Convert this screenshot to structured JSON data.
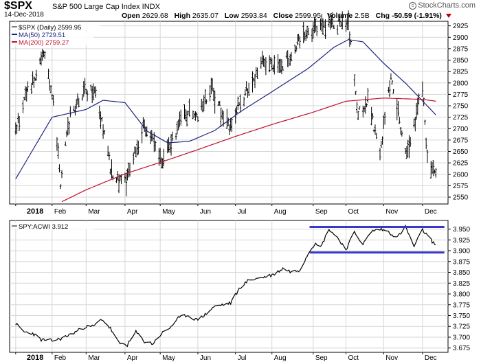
{
  "header": {
    "symbol": "$SPX",
    "description": "S&P 500 Large Cap Index INDX",
    "date": "14-Dec-2018",
    "open_label": "Open",
    "open": "2629.68",
    "high_label": "High",
    "high": "2635.07",
    "low_label": "Low",
    "low": "2593.84",
    "close_label": "Close",
    "close": "2599.95",
    "volume_label": "Volume",
    "volume": "2.5B",
    "chg_label": "Chg",
    "chg": "-50.59 (-1.91%)",
    "brand": "StockCharts.com",
    "down_color": "#c00000"
  },
  "chart_data": [
    {
      "type": "line",
      "legend": [
        {
          "label": "$SPX (Daily) 2599.95",
          "color": "#000000"
        },
        {
          "label": "MA(50) 2729.51",
          "color": "#1a237e"
        },
        {
          "label": "MA(200) 2759.27",
          "color": "#c0102a"
        }
      ],
      "x_labels": [
        "2018",
        "Feb",
        "Mar",
        "Apr",
        "May",
        "Jun",
        "Jul",
        "Aug",
        "Sep",
        "Oct",
        "Nov",
        "Dec"
      ],
      "y_ticks": [
        2550,
        2575,
        2600,
        2625,
        2650,
        2675,
        2700,
        2725,
        2750,
        2775,
        2800,
        2825,
        2850,
        2875,
        2900,
        2925
      ],
      "ylim": [
        2535,
        2935
      ],
      "grid": true,
      "series": [
        {
          "name": "$SPX (Daily)",
          "color": "#000000",
          "x": [
            "2018-01-02",
            "2018-01-12",
            "2018-01-19",
            "2018-01-26",
            "2018-02-02",
            "2018-02-08",
            "2018-02-16",
            "2018-02-26",
            "2018-03-09",
            "2018-03-23",
            "2018-04-02",
            "2018-04-18",
            "2018-05-03",
            "2018-05-21",
            "2018-06-01",
            "2018-06-12",
            "2018-06-27",
            "2018-07-06",
            "2018-07-25",
            "2018-08-10",
            "2018-08-29",
            "2018-09-20",
            "2018-10-03",
            "2018-10-11",
            "2018-10-19",
            "2018-10-29",
            "2018-11-07",
            "2018-11-20",
            "2018-12-03",
            "2018-12-07",
            "2018-12-14"
          ],
          "y": [
            2695,
            2786,
            2810,
            2872,
            2762,
            2581,
            2732,
            2779,
            2786,
            2588,
            2582,
            2708,
            2629,
            2733,
            2734,
            2786,
            2699,
            2759,
            2846,
            2833,
            2914,
            2930,
            2925,
            2728,
            2767,
            2641,
            2813,
            2641,
            2790,
            2633,
            2600
          ]
        },
        {
          "name": "MA(50)",
          "color": "#1a237e",
          "x": [
            "2018-01-02",
            "2018-02-01",
            "2018-03-01",
            "2018-03-15",
            "2018-04-02",
            "2018-04-20",
            "2018-05-07",
            "2018-05-25",
            "2018-06-15",
            "2018-07-06",
            "2018-07-31",
            "2018-08-31",
            "2018-09-21",
            "2018-10-03",
            "2018-10-15",
            "2018-11-01",
            "2018-11-20",
            "2018-12-14"
          ],
          "y": [
            2590,
            2725,
            2742,
            2762,
            2757,
            2695,
            2669,
            2672,
            2696,
            2737,
            2779,
            2832,
            2878,
            2895,
            2890,
            2843,
            2797,
            2730
          ]
        },
        {
          "name": "MA(200)",
          "color": "#c0102a",
          "x": [
            "2018-02-09",
            "2018-03-01",
            "2018-04-02",
            "2018-05-01",
            "2018-06-01",
            "2018-07-02",
            "2018-08-01",
            "2018-09-04",
            "2018-10-01",
            "2018-11-01",
            "2018-12-03",
            "2018-12-14"
          ],
          "y": [
            2540,
            2566,
            2601,
            2626,
            2654,
            2683,
            2709,
            2736,
            2760,
            2767,
            2764,
            2760
          ]
        }
      ],
      "annotations": []
    },
    {
      "type": "line",
      "legend": [
        {
          "label": "SPY:ACWI 3.912",
          "color": "#000000"
        }
      ],
      "x_labels": [
        "2018",
        "Feb",
        "Mar",
        "Apr",
        "May",
        "Jun",
        "Jul",
        "Aug",
        "Sep",
        "Oct",
        "Nov",
        "Dec"
      ],
      "y_ticks": [
        3.675,
        3.7,
        3.725,
        3.75,
        3.775,
        3.8,
        3.825,
        3.85,
        3.875,
        3.9,
        3.925,
        3.95
      ],
      "ylim": [
        3.665,
        3.97
      ],
      "grid": true,
      "series": [
        {
          "name": "SPY:ACWI",
          "color": "#000000",
          "x": [
            "2018-01-02",
            "2018-01-09",
            "2018-01-16",
            "2018-01-23",
            "2018-02-01",
            "2018-02-09",
            "2018-02-20",
            "2018-02-28",
            "2018-03-07",
            "2018-03-14",
            "2018-03-21",
            "2018-03-28",
            "2018-04-04",
            "2018-04-11",
            "2018-04-18",
            "2018-04-25",
            "2018-05-02",
            "2018-05-09",
            "2018-05-16",
            "2018-05-23",
            "2018-05-31",
            "2018-06-07",
            "2018-06-14",
            "2018-06-21",
            "2018-06-28",
            "2018-07-06",
            "2018-07-13",
            "2018-07-20",
            "2018-07-27",
            "2018-08-03",
            "2018-08-10",
            "2018-08-17",
            "2018-08-24",
            "2018-08-31",
            "2018-09-06",
            "2018-09-10",
            "2018-09-17",
            "2018-09-24",
            "2018-10-01",
            "2018-10-08",
            "2018-10-15",
            "2018-10-22",
            "2018-10-29",
            "2018-11-05",
            "2018-11-12",
            "2018-11-19",
            "2018-11-26",
            "2018-12-03",
            "2018-12-10",
            "2018-12-14"
          ],
          "y": [
            3.731,
            3.712,
            3.709,
            3.694,
            3.692,
            3.697,
            3.712,
            3.724,
            3.725,
            3.742,
            3.72,
            3.686,
            3.682,
            3.712,
            3.69,
            3.685,
            3.708,
            3.722,
            3.744,
            3.751,
            3.74,
            3.752,
            3.77,
            3.775,
            3.779,
            3.816,
            3.832,
            3.836,
            3.84,
            3.846,
            3.859,
            3.851,
            3.856,
            3.895,
            3.92,
            3.907,
            3.95,
            3.93,
            3.903,
            3.943,
            3.915,
            3.945,
            3.95,
            3.944,
            3.93,
            3.955,
            3.91,
            3.948,
            3.925,
            3.912
          ]
        }
      ],
      "annotations": [
        {
          "type": "horizontal-line",
          "y": 3.955,
          "x_start": "2018-09-01",
          "x_end": "2018-12-21",
          "color": "#3838c8"
        },
        {
          "type": "horizontal-line",
          "y": 3.896,
          "x_start": "2018-09-01",
          "x_end": "2018-12-21",
          "color": "#3838c8"
        }
      ]
    }
  ]
}
